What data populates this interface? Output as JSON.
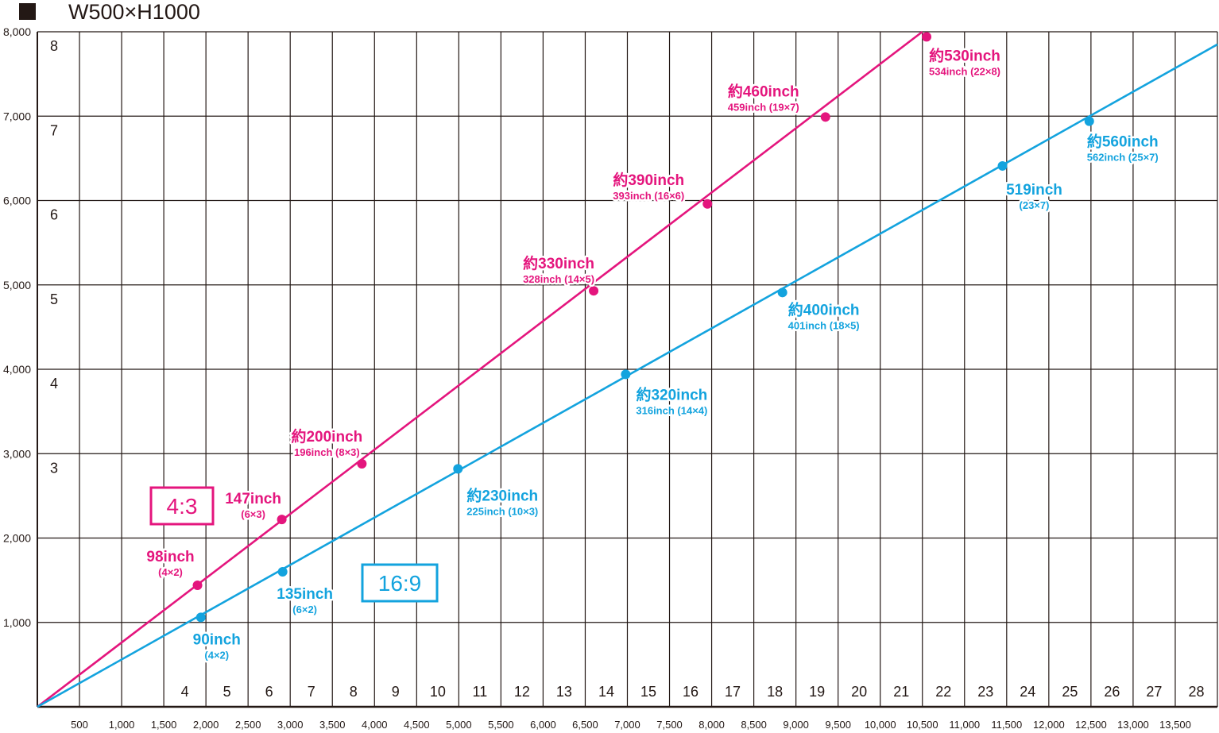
{
  "title": "W500×H1000",
  "colors": {
    "grid": "#231815",
    "pink": "#e4157d",
    "blue": "#13a3de"
  },
  "chart_data": {
    "type": "line",
    "title": "W500×H1000",
    "xlim": [
      0,
      14000
    ],
    "ylim": [
      0,
      8000
    ],
    "x_ticks": [
      "500",
      "1,000",
      "1,500",
      "2,000",
      "2,500",
      "3,000",
      "3,500",
      "4,000",
      "4,500",
      "5,000",
      "5,500",
      "6,000",
      "6,500",
      "7,000",
      "7,500",
      "8,000",
      "8,500",
      "9,000",
      "9,500",
      "10,000",
      "10,500",
      "11,000",
      "11,500",
      "12,000",
      "12,500",
      "13,000",
      "13,500"
    ],
    "y_ticks": [
      "1,000",
      "2,000",
      "3,000",
      "4,000",
      "5,000",
      "6,000",
      "7,000",
      "8,000"
    ],
    "x_panel_counts": [
      "4",
      "5",
      "6",
      "7",
      "8",
      "9",
      "10",
      "11",
      "12",
      "13",
      "14",
      "15",
      "16",
      "17",
      "18",
      "19",
      "20",
      "21",
      "22",
      "23",
      "24",
      "25",
      "26",
      "27",
      "28"
    ],
    "y_panel_counts": [
      "3",
      "4",
      "5",
      "6",
      "7",
      "8"
    ],
    "ratio_labels": [
      {
        "text": "4:3",
        "color": "#e4157d"
      },
      {
        "text": "16:9",
        "color": "#13a3de"
      }
    ],
    "series": [
      {
        "name": "4:3",
        "color": "#e4157d",
        "line_end": [
          10500,
          8000
        ],
        "points": [
          {
            "x": 1900,
            "y": 1440,
            "label": "98inch",
            "sub": "(4×2)"
          },
          {
            "x": 2900,
            "y": 2220,
            "label": "147inch",
            "sub": "(6×3)"
          },
          {
            "x": 3850,
            "y": 2880,
            "label": "約200inch",
            "sub": "196inch (8×3)"
          },
          {
            "x": 6600,
            "y": 4930,
            "label": "約330inch",
            "sub": "328inch (14×5)"
          },
          {
            "x": 7950,
            "y": 5960,
            "label": "約390inch",
            "sub": "393inch (16×6)"
          },
          {
            "x": 9350,
            "y": 6990,
            "label": "約460inch",
            "sub": "459inch (19×7)"
          },
          {
            "x": 10550,
            "y": 7940,
            "label": "約530inch",
            "sub": "534inch (22×8)"
          }
        ]
      },
      {
        "name": "16:9",
        "color": "#13a3de",
        "line_end": [
          14000,
          7850
        ],
        "points": [
          {
            "x": 1940,
            "y": 1060,
            "label": "90inch",
            "sub": "(4×2)"
          },
          {
            "x": 2910,
            "y": 1600,
            "label": "135inch",
            "sub": "(6×2)"
          },
          {
            "x": 4990,
            "y": 2820,
            "label": "約230inch",
            "sub": "225inch (10×3)"
          },
          {
            "x": 6980,
            "y": 3940,
            "label": "約320inch",
            "sub": "316inch (14×4)"
          },
          {
            "x": 8840,
            "y": 4910,
            "label": "約400inch",
            "sub": "401inch (18×5)"
          },
          {
            "x": 11450,
            "y": 6410,
            "label": "519inch",
            "sub": "(23×7)"
          },
          {
            "x": 12480,
            "y": 6940,
            "label": "約560inch",
            "sub": "562inch (25×7)"
          }
        ]
      }
    ]
  }
}
